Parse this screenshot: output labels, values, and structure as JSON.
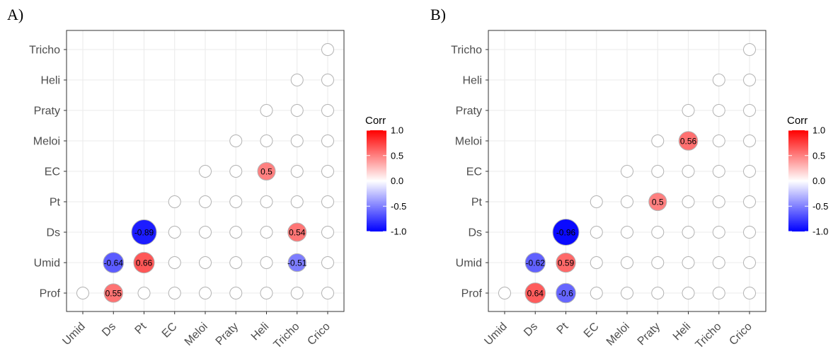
{
  "chart_data": [
    {
      "type": "scatter",
      "panel_label": "A)",
      "x_categories": [
        "Umid",
        "Ds",
        "Pt",
        "EC",
        "Meloi",
        "Praty",
        "Heli",
        "Tricho",
        "Crico"
      ],
      "y_categories": [
        "Prof",
        "Umid",
        "Ds",
        "Pt",
        "EC",
        "Meloi",
        "Praty",
        "Heli",
        "Tricho"
      ],
      "cells": [
        {
          "x": "Umid",
          "y": "Prof",
          "value": null
        },
        {
          "x": "Ds",
          "y": "Prof",
          "value": 0.55
        },
        {
          "x": "Pt",
          "y": "Prof",
          "value": null
        },
        {
          "x": "EC",
          "y": "Prof",
          "value": null
        },
        {
          "x": "Meloi",
          "y": "Prof",
          "value": null
        },
        {
          "x": "Praty",
          "y": "Prof",
          "value": null
        },
        {
          "x": "Heli",
          "y": "Prof",
          "value": null
        },
        {
          "x": "Tricho",
          "y": "Prof",
          "value": null
        },
        {
          "x": "Crico",
          "y": "Prof",
          "value": null
        },
        {
          "x": "Ds",
          "y": "Umid",
          "value": -0.64
        },
        {
          "x": "Pt",
          "y": "Umid",
          "value": 0.66
        },
        {
          "x": "EC",
          "y": "Umid",
          "value": null
        },
        {
          "x": "Meloi",
          "y": "Umid",
          "value": null
        },
        {
          "x": "Praty",
          "y": "Umid",
          "value": null
        },
        {
          "x": "Heli",
          "y": "Umid",
          "value": null
        },
        {
          "x": "Tricho",
          "y": "Umid",
          "value": -0.51
        },
        {
          "x": "Crico",
          "y": "Umid",
          "value": null
        },
        {
          "x": "Pt",
          "y": "Ds",
          "value": -0.89
        },
        {
          "x": "EC",
          "y": "Ds",
          "value": null
        },
        {
          "x": "Meloi",
          "y": "Ds",
          "value": null
        },
        {
          "x": "Praty",
          "y": "Ds",
          "value": null
        },
        {
          "x": "Heli",
          "y": "Ds",
          "value": null
        },
        {
          "x": "Tricho",
          "y": "Ds",
          "value": 0.54
        },
        {
          "x": "Crico",
          "y": "Ds",
          "value": null
        },
        {
          "x": "EC",
          "y": "Pt",
          "value": null
        },
        {
          "x": "Meloi",
          "y": "Pt",
          "value": null
        },
        {
          "x": "Praty",
          "y": "Pt",
          "value": null
        },
        {
          "x": "Heli",
          "y": "Pt",
          "value": null
        },
        {
          "x": "Tricho",
          "y": "Pt",
          "value": null
        },
        {
          "x": "Crico",
          "y": "Pt",
          "value": null
        },
        {
          "x": "Meloi",
          "y": "EC",
          "value": null
        },
        {
          "x": "Praty",
          "y": "EC",
          "value": null
        },
        {
          "x": "Heli",
          "y": "EC",
          "value": 0.5
        },
        {
          "x": "Tricho",
          "y": "EC",
          "value": null
        },
        {
          "x": "Crico",
          "y": "EC",
          "value": null
        },
        {
          "x": "Praty",
          "y": "Meloi",
          "value": null
        },
        {
          "x": "Heli",
          "y": "Meloi",
          "value": null
        },
        {
          "x": "Tricho",
          "y": "Meloi",
          "value": null
        },
        {
          "x": "Crico",
          "y": "Meloi",
          "value": null
        },
        {
          "x": "Heli",
          "y": "Praty",
          "value": null
        },
        {
          "x": "Tricho",
          "y": "Praty",
          "value": null
        },
        {
          "x": "Crico",
          "y": "Praty",
          "value": null
        },
        {
          "x": "Tricho",
          "y": "Heli",
          "value": null
        },
        {
          "x": "Crico",
          "y": "Heli",
          "value": null
        },
        {
          "x": "Crico",
          "y": "Tricho",
          "value": null
        }
      ],
      "legend": {
        "title": "Corr",
        "ticks": [
          "1.0",
          "0.5",
          "0.0",
          "-0.5",
          "-1.0"
        ],
        "range": [
          -1,
          1
        ],
        "placement": "right"
      },
      "grid": true
    },
    {
      "type": "scatter",
      "panel_label": "B)",
      "x_categories": [
        "Umid",
        "Ds",
        "Pt",
        "EC",
        "Meloi",
        "Praty",
        "Heli",
        "Tricho",
        "Crico"
      ],
      "y_categories": [
        "Prof",
        "Umid",
        "Ds",
        "Pt",
        "EC",
        "Meloi",
        "Praty",
        "Heli",
        "Tricho"
      ],
      "cells": [
        {
          "x": "Umid",
          "y": "Prof",
          "value": null
        },
        {
          "x": "Ds",
          "y": "Prof",
          "value": 0.64
        },
        {
          "x": "Pt",
          "y": "Prof",
          "value": -0.6
        },
        {
          "x": "EC",
          "y": "Prof",
          "value": null
        },
        {
          "x": "Meloi",
          "y": "Prof",
          "value": null
        },
        {
          "x": "Praty",
          "y": "Prof",
          "value": null
        },
        {
          "x": "Heli",
          "y": "Prof",
          "value": null
        },
        {
          "x": "Tricho",
          "y": "Prof",
          "value": null
        },
        {
          "x": "Crico",
          "y": "Prof",
          "value": null
        },
        {
          "x": "Ds",
          "y": "Umid",
          "value": -0.62
        },
        {
          "x": "Pt",
          "y": "Umid",
          "value": 0.59
        },
        {
          "x": "EC",
          "y": "Umid",
          "value": null
        },
        {
          "x": "Meloi",
          "y": "Umid",
          "value": null
        },
        {
          "x": "Praty",
          "y": "Umid",
          "value": null
        },
        {
          "x": "Heli",
          "y": "Umid",
          "value": null
        },
        {
          "x": "Tricho",
          "y": "Umid",
          "value": null
        },
        {
          "x": "Crico",
          "y": "Umid",
          "value": null
        },
        {
          "x": "Pt",
          "y": "Ds",
          "value": -0.96
        },
        {
          "x": "EC",
          "y": "Ds",
          "value": null
        },
        {
          "x": "Meloi",
          "y": "Ds",
          "value": null
        },
        {
          "x": "Praty",
          "y": "Ds",
          "value": null
        },
        {
          "x": "Heli",
          "y": "Ds",
          "value": null
        },
        {
          "x": "Tricho",
          "y": "Ds",
          "value": null
        },
        {
          "x": "Crico",
          "y": "Ds",
          "value": null
        },
        {
          "x": "EC",
          "y": "Pt",
          "value": null
        },
        {
          "x": "Meloi",
          "y": "Pt",
          "value": null
        },
        {
          "x": "Praty",
          "y": "Pt",
          "value": 0.5
        },
        {
          "x": "Heli",
          "y": "Pt",
          "value": null
        },
        {
          "x": "Tricho",
          "y": "Pt",
          "value": null
        },
        {
          "x": "Crico",
          "y": "Pt",
          "value": null
        },
        {
          "x": "Meloi",
          "y": "EC",
          "value": null
        },
        {
          "x": "Praty",
          "y": "EC",
          "value": null
        },
        {
          "x": "Heli",
          "y": "EC",
          "value": null
        },
        {
          "x": "Tricho",
          "y": "EC",
          "value": null
        },
        {
          "x": "Crico",
          "y": "EC",
          "value": null
        },
        {
          "x": "Praty",
          "y": "Meloi",
          "value": null
        },
        {
          "x": "Heli",
          "y": "Meloi",
          "value": 0.56
        },
        {
          "x": "Tricho",
          "y": "Meloi",
          "value": null
        },
        {
          "x": "Crico",
          "y": "Meloi",
          "value": null
        },
        {
          "x": "Heli",
          "y": "Praty",
          "value": null
        },
        {
          "x": "Tricho",
          "y": "Praty",
          "value": null
        },
        {
          "x": "Crico",
          "y": "Praty",
          "value": null
        },
        {
          "x": "Tricho",
          "y": "Heli",
          "value": null
        },
        {
          "x": "Crico",
          "y": "Heli",
          "value": null
        },
        {
          "x": "Crico",
          "y": "Tricho",
          "value": null
        }
      ],
      "legend": {
        "title": "Corr",
        "ticks": [
          "1.0",
          "0.5",
          "0.0",
          "-0.5",
          "-1.0"
        ],
        "range": [
          -1,
          1
        ],
        "placement": "right"
      },
      "grid": true
    }
  ]
}
